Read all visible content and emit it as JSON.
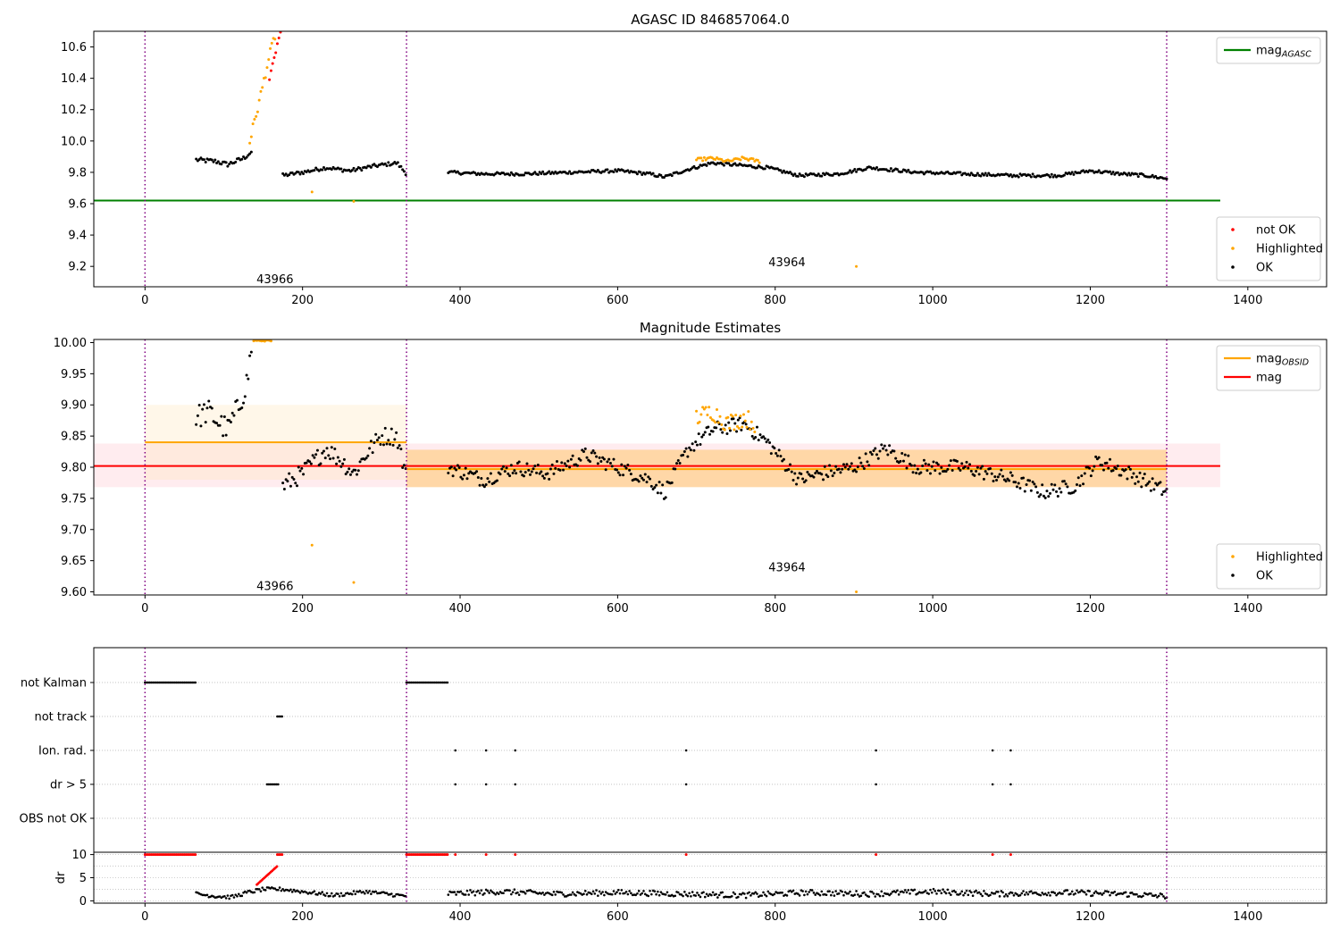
{
  "chart_data": [
    {
      "type": "scatter",
      "title": "AGASC ID 846857064.0",
      "xlim": [
        -65,
        1500
      ],
      "ylim": [
        9.07,
        10.7
      ],
      "x_ticks": [
        0,
        200,
        400,
        600,
        800,
        1000,
        1200,
        1400
      ],
      "y_ticks": [
        9.2,
        9.4,
        9.6,
        9.8,
        10.0,
        10.2,
        10.4,
        10.6
      ],
      "obs_boundaries": [
        0,
        332,
        1297
      ],
      "annotations": [
        {
          "text": "43966",
          "x": 165,
          "y": 9.12
        },
        {
          "text": "43964",
          "x": 815,
          "y": 9.23
        }
      ],
      "lines": [
        {
          "name": "mag",
          "sub": "AGASC",
          "color": "#008000",
          "x": [
            -65,
            1365
          ],
          "y": [
            9.62,
            9.62
          ]
        }
      ],
      "legend_top": {
        "position": "upper right",
        "entries": [
          {
            "label": "mag",
            "sub": "AGASC",
            "color": "#008000"
          }
        ]
      },
      "legend_bottom": {
        "position": "lower right",
        "entries": [
          {
            "label": "not OK",
            "color": "#ff0000"
          },
          {
            "label": "Highlighted",
            "color": "#ffa500"
          },
          {
            "label": "OK",
            "color": "#000000"
          }
        ]
      },
      "series_ok": [
        {
          "x": [
            65,
            90,
            105,
            125,
            135
          ],
          "y": [
            9.88,
            9.87,
            9.85,
            9.89,
            9.93
          ],
          "noise": 0.015
        },
        {
          "x": [
            175,
            200,
            230,
            260,
            290,
            320,
            332
          ],
          "y": [
            9.78,
            9.8,
            9.83,
            9.81,
            9.84,
            9.86,
            9.79
          ],
          "noise": 0.012
        },
        {
          "x": [
            385,
            430,
            480,
            540,
            600,
            640,
            660,
            690,
            720,
            790,
            830,
            880,
            920,
            980,
            1040,
            1100,
            1160,
            1200,
            1240,
            1270,
            1297
          ],
          "y": [
            9.8,
            9.79,
            9.79,
            9.8,
            9.81,
            9.79,
            9.77,
            9.82,
            9.86,
            9.83,
            9.78,
            9.79,
            9.83,
            9.8,
            9.79,
            9.78,
            9.78,
            9.81,
            9.79,
            9.78,
            9.76
          ],
          "noise": 0.01
        }
      ],
      "series_highlighted": [
        {
          "x": [
            133,
            145,
            155,
            162,
            170
          ],
          "y": [
            10.0,
            10.25,
            10.48,
            10.62,
            10.75
          ],
          "noise": 0.03
        },
        {
          "x": [
            700,
            720,
            740,
            760,
            780
          ],
          "y": [
            9.88,
            9.89,
            9.87,
            9.89,
            9.87
          ],
          "noise": 0.01
        },
        {
          "points": [
            [
              212,
              9.675
            ],
            [
              265,
              9.615
            ],
            [
              903,
              9.2
            ]
          ]
        }
      ],
      "series_not_ok": [
        {
          "x": [
            158,
            166,
            172
          ],
          "y": [
            10.4,
            10.58,
            10.7
          ],
          "noise": 0.02
        }
      ]
    },
    {
      "type": "scatter",
      "title": "Magnitude Estimates",
      "xlim": [
        -65,
        1500
      ],
      "ylim": [
        9.595,
        10.005
      ],
      "x_ticks": [
        0,
        200,
        400,
        600,
        800,
        1000,
        1200,
        1400
      ],
      "y_ticks": [
        9.6,
        9.65,
        9.7,
        9.75,
        9.8,
        9.85,
        9.9,
        9.95,
        10.0
      ],
      "obs_boundaries": [
        0,
        332,
        1297
      ],
      "annotations": [
        {
          "text": "43966",
          "x": 165,
          "y": 9.61
        },
        {
          "text": "43964",
          "x": 815,
          "y": 9.64
        }
      ],
      "bands": [
        {
          "x": [
            -65,
            1365
          ],
          "y": [
            9.768,
            9.838
          ],
          "color": "#ffc0cb"
        },
        {
          "x": [
            0,
            332
          ],
          "y": [
            9.78,
            9.9
          ],
          "color": "#ffe4b5"
        },
        {
          "x": [
            332,
            1297
          ],
          "y": [
            9.768,
            9.828
          ],
          "color": "#ffa500"
        }
      ],
      "lines": [
        {
          "name": "mag",
          "color": "#ff0000",
          "x": [
            -65,
            1365
          ],
          "y": [
            9.802,
            9.802
          ]
        },
        {
          "name": "mag",
          "sub": "OBSID",
          "color": "#ffa500",
          "x": [
            0,
            332
          ],
          "y": [
            9.84,
            9.84
          ]
        },
        {
          "name": "mag",
          "sub": "OBSID",
          "color": "#ffa500",
          "x": [
            332,
            1297
          ],
          "y": [
            9.797,
            9.797
          ]
        }
      ],
      "legend_top": {
        "position": "upper right",
        "entries": [
          {
            "label": "mag",
            "sub": "OBSID",
            "color": "#ffa500"
          },
          {
            "label": "mag",
            "color": "#ff0000"
          }
        ]
      },
      "legend_bottom": {
        "position": "lower right",
        "entries": [
          {
            "label": "Highlighted",
            "color": "#ffa500"
          },
          {
            "label": "OK",
            "color": "#000000"
          }
        ]
      },
      "series_ok": [
        {
          "x": [
            65,
            80,
            95,
            105,
            120,
            130,
            135
          ],
          "y": [
            9.88,
            9.89,
            9.87,
            9.86,
            9.9,
            9.94,
            9.99
          ],
          "noise": 0.02
        },
        {
          "x": [
            175,
            200,
            230,
            250,
            265,
            280,
            300,
            320,
            332
          ],
          "y": [
            9.77,
            9.79,
            9.83,
            9.81,
            9.79,
            9.82,
            9.85,
            9.85,
            9.78
          ],
          "noise": 0.015
        },
        {
          "x": [
            385,
            430,
            470,
            510,
            560,
            600,
            640,
            660,
            690,
            720,
            760,
            790,
            830,
            860,
            900,
            940,
            980,
            1040,
            1100,
            1140,
            1180,
            1210,
            1250,
            1297
          ],
          "y": [
            9.8,
            9.78,
            9.8,
            9.79,
            9.82,
            9.8,
            9.78,
            9.76,
            9.83,
            9.86,
            9.87,
            9.84,
            9.78,
            9.79,
            9.8,
            9.83,
            9.8,
            9.8,
            9.78,
            9.76,
            9.77,
            9.81,
            9.79,
            9.76
          ],
          "noise": 0.012
        }
      ],
      "series_highlighted": [
        {
          "x": [
            138,
            160
          ],
          "y": [
            10.003,
            10.003
          ],
          "noise": 0.001
        },
        {
          "x": [
            700,
            720,
            740,
            760,
            775
          ],
          "y": [
            9.88,
            9.89,
            9.87,
            9.88,
            9.87
          ],
          "noise": 0.015
        },
        {
          "points": [
            [
              212,
              9.675
            ],
            [
              265,
              9.615
            ],
            [
              903,
              9.6
            ]
          ]
        }
      ],
      "series_not_ok": []
    },
    {
      "type": "scatter",
      "categories": [
        "not Kalman",
        "not track",
        "Ion. rad.",
        "dr > 5",
        "OBS not OK"
      ],
      "xlim": [
        -65,
        1500
      ],
      "obs_boundaries": [
        0,
        332,
        1297
      ],
      "flags": {
        "not Kalman": [
          [
            0,
            64
          ],
          [
            332,
            385
          ]
        ],
        "not track": [
          [
            168,
            175
          ]
        ],
        "Ion. rad.": [
          [
            394,
            394
          ],
          [
            433,
            433
          ],
          [
            470,
            470
          ],
          [
            687,
            687
          ],
          [
            928,
            928
          ],
          [
            1076,
            1076
          ],
          [
            1099,
            1099
          ]
        ],
        "dr > 5": [
          [
            155,
            170
          ],
          [
            394,
            394
          ],
          [
            433,
            433
          ],
          [
            470,
            470
          ],
          [
            687,
            687
          ],
          [
            928,
            928
          ],
          [
            1076,
            1076
          ],
          [
            1099,
            1099
          ]
        ],
        "OBS not OK": []
      }
    },
    {
      "type": "scatter",
      "ylabel": "dr",
      "xlim": [
        -65,
        1500
      ],
      "ylim": [
        -0.5,
        10.5
      ],
      "x_ticks": [
        0,
        200,
        400,
        600,
        800,
        1000,
        1200,
        1400
      ],
      "y_ticks": [
        0,
        5,
        10
      ],
      "obs_boundaries": [
        0,
        332,
        1297
      ],
      "red_top": [
        [
          0,
          64
        ],
        [
          168,
          175
        ],
        [
          332,
          385
        ],
        [
          394,
          394
        ],
        [
          433,
          433
        ],
        [
          470,
          470
        ],
        [
          687,
          687
        ],
        [
          928,
          928
        ],
        [
          1076,
          1076
        ],
        [
          1099,
          1099
        ]
      ],
      "red_ramp": {
        "x": [
          142,
          168
        ],
        "y": [
          3.5,
          7.5
        ]
      },
      "series_ok": [
        {
          "x": [
            65,
            90,
            110,
            130,
            150,
            175,
            200,
            240,
            280,
            332
          ],
          "y": [
            1.5,
            1.0,
            0.8,
            1.8,
            2.5,
            2.5,
            2.0,
            1.2,
            2.0,
            1.0
          ],
          "noise": 0.4
        },
        {
          "x": [
            385,
            450,
            520,
            600,
            680,
            760,
            840,
            920,
            1000,
            1080,
            1160,
            1240,
            1297
          ],
          "y": [
            1.5,
            2.0,
            1.5,
            1.8,
            1.5,
            1.2,
            1.8,
            1.5,
            2.0,
            1.5,
            1.8,
            1.5,
            1.0
          ],
          "noise": 0.6
        }
      ]
    }
  ]
}
